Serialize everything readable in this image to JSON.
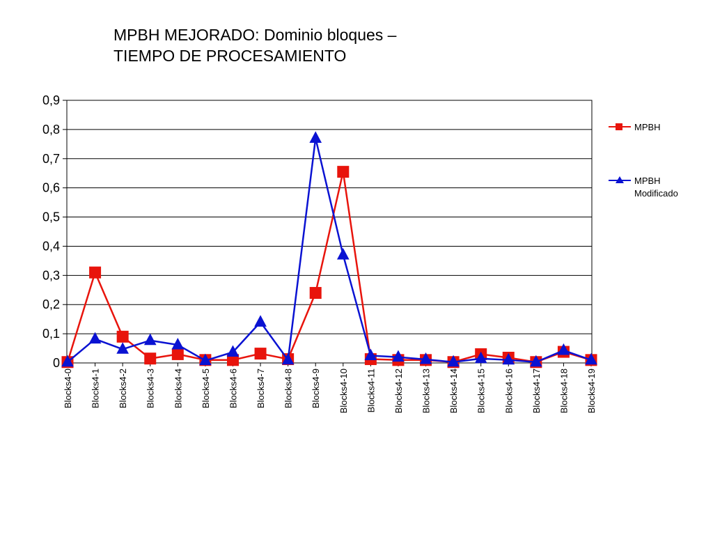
{
  "chart_data": {
    "type": "line",
    "title": [
      "MPBH MEJORADO: Dominio bloques –",
      "TIEMPO DE PROCESAMIENTO"
    ],
    "xlabel": "",
    "ylabel": "",
    "ylim": [
      0,
      0.9
    ],
    "yticks": [
      "0",
      "0,1",
      "0,2",
      "0,3",
      "0,4",
      "0,5",
      "0,6",
      "0,7",
      "0,8",
      "0,9"
    ],
    "grid": true,
    "legend_position": "right",
    "categories": [
      "Blocks4-0",
      "Blocks4-1",
      "Blocks4-2",
      "Blocks4-3",
      "Blocks4-4",
      "Blocks4-5",
      "Blocks4-6",
      "Blocks4-7",
      "Blocks4-8",
      "Blocks4-9",
      "Blocks4-10",
      "Blocks4-11",
      "Blocks4-12",
      "Blocks4-13",
      "Blocks4-14",
      "Blocks4-15",
      "Blocks4-16",
      "Blocks4-17",
      "Blocks4-18",
      "Blocks4-19"
    ],
    "series": [
      {
        "name": [
          "MPBH"
        ],
        "color": "#e8140c",
        "marker": "square",
        "values": [
          0.003,
          0.31,
          0.09,
          0.015,
          0.03,
          0.01,
          0.01,
          0.032,
          0.013,
          0.24,
          0.655,
          0.013,
          0.01,
          0.01,
          0.003,
          0.03,
          0.018,
          0.003,
          0.038,
          0.01
        ]
      },
      {
        "name": [
          "MPBH",
          "Modificado"
        ],
        "color": "#0a12d2",
        "marker": "triangle",
        "values": [
          0.003,
          0.082,
          0.047,
          0.077,
          0.062,
          0.008,
          0.037,
          0.14,
          0.01,
          0.77,
          0.37,
          0.025,
          0.02,
          0.012,
          0.003,
          0.015,
          0.01,
          0.003,
          0.043,
          0.01
        ]
      }
    ]
  }
}
